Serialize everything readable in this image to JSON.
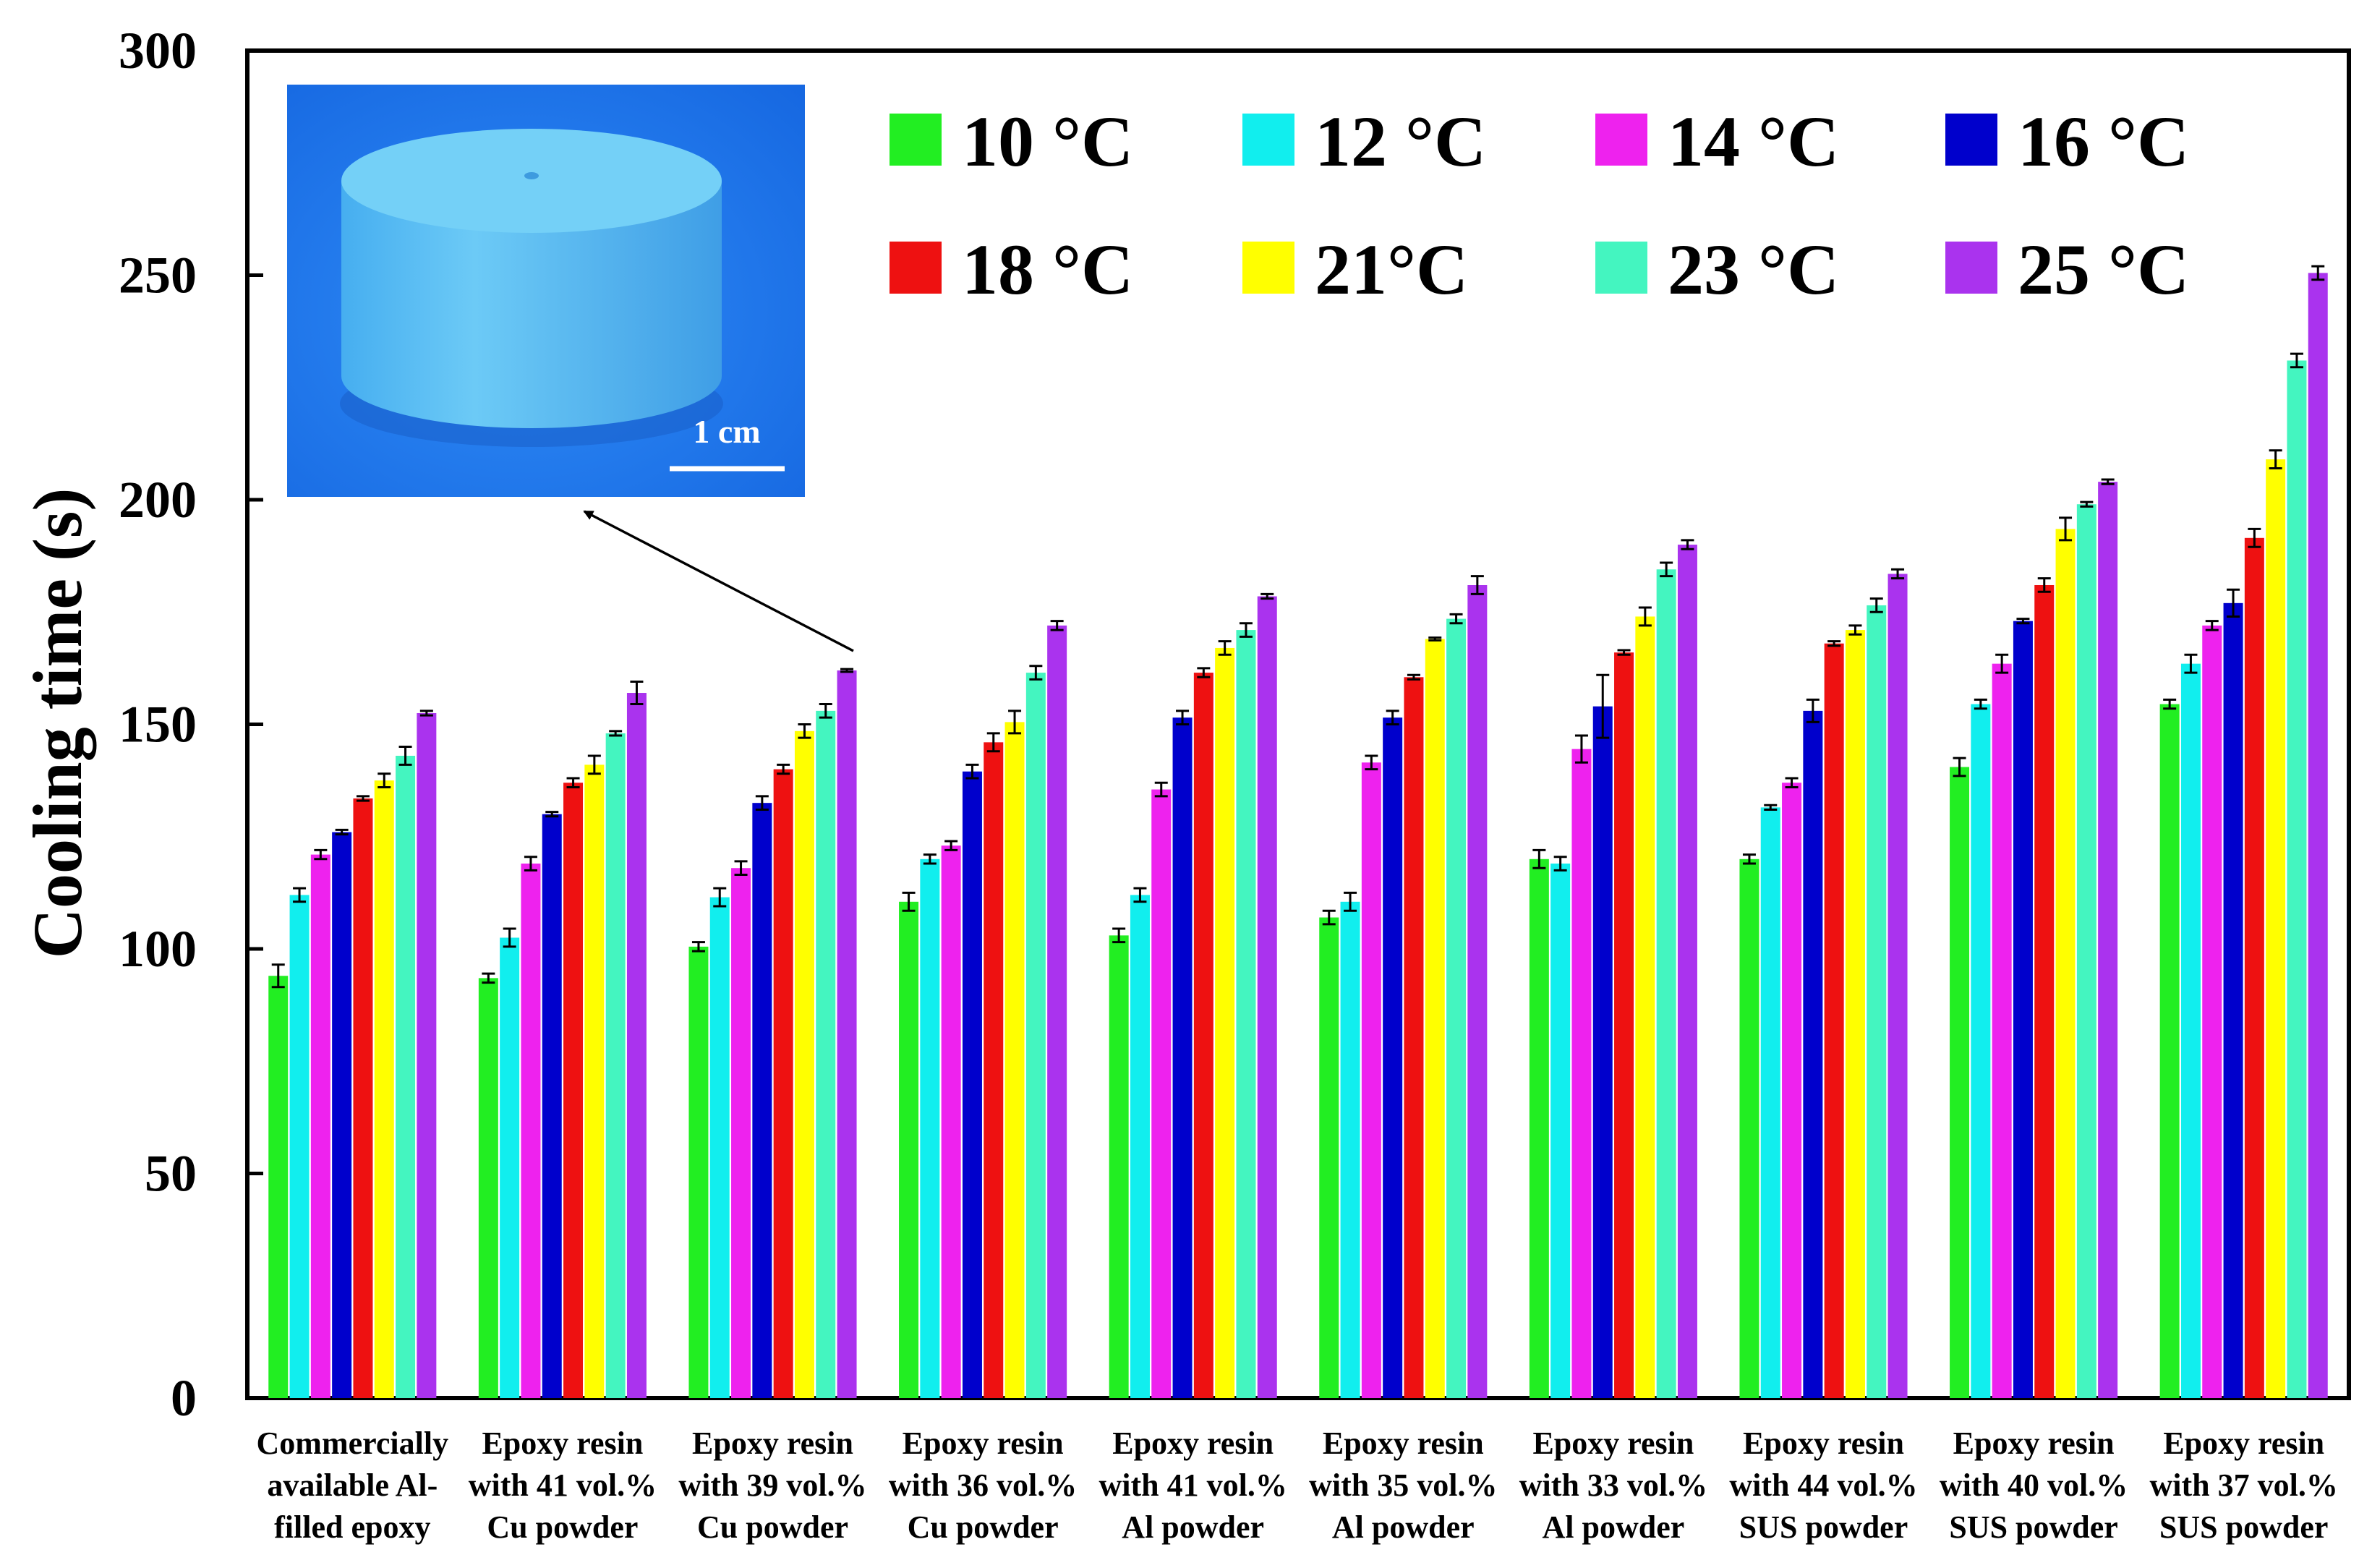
{
  "chart_data": {
    "type": "bar",
    "ylabel": "Cooling time (s)",
    "xlabel": "",
    "ylim": [
      0,
      300
    ],
    "yticks": [
      0,
      50,
      100,
      150,
      200,
      250,
      300
    ],
    "grid": false,
    "legend_position": "top-right",
    "categories": [
      [
        "Commercially",
        "available Al-",
        "filled epoxy"
      ],
      [
        "Epoxy resin",
        "with 41 vol.%",
        "Cu powder"
      ],
      [
        "Epoxy resin",
        "with 39 vol.%",
        "Cu powder"
      ],
      [
        "Epoxy resin",
        "with 36 vol.%",
        "Cu powder"
      ],
      [
        "Epoxy resin",
        "with 41 vol.%",
        "Al powder"
      ],
      [
        "Epoxy resin",
        "with 35 vol.%",
        "Al powder"
      ],
      [
        "Epoxy resin",
        "with 33 vol.%",
        "Al powder"
      ],
      [
        "Epoxy resin",
        "with 44 vol.%",
        "SUS powder"
      ],
      [
        "Epoxy resin",
        "with 40 vol.%",
        "SUS powder"
      ],
      [
        "Epoxy resin",
        "with 37 vol.%",
        "SUS powder"
      ]
    ],
    "series": [
      {
        "name": "10 °C",
        "color": "#22ee22",
        "values": [
          94,
          93.5,
          100.5,
          110.5,
          103,
          107,
          120,
          120,
          140.5,
          154.5
        ],
        "errors": [
          2.5,
          1,
          1,
          2,
          1.5,
          1.5,
          2,
          1,
          2,
          1
        ]
      },
      {
        "name": "12 °C",
        "color": "#11eeee",
        "values": [
          112,
          102.5,
          111.5,
          120,
          112,
          110.5,
          119,
          131.5,
          154.5,
          163.5
        ],
        "errors": [
          1.5,
          2,
          2,
          1,
          1.5,
          2,
          1.5,
          0.5,
          1,
          2
        ]
      },
      {
        "name": "14 °C",
        "color": "#ee22ee",
        "values": [
          121,
          119,
          118,
          123,
          135.5,
          141.5,
          144.5,
          137,
          163.5,
          172
        ],
        "errors": [
          1,
          1.5,
          1.5,
          1,
          1.5,
          1.5,
          3,
          1,
          2,
          1
        ]
      },
      {
        "name": "16 °C",
        "color": "#0000cc",
        "values": [
          126,
          130,
          132.5,
          139.5,
          151.5,
          151.5,
          154,
          153,
          173,
          177
        ],
        "errors": [
          0.5,
          0.5,
          1.5,
          1.5,
          1.5,
          1.5,
          7,
          2.5,
          0.5,
          3
        ]
      },
      {
        "name": "18 °C",
        "color": "#ee1111",
        "values": [
          133.5,
          137,
          140,
          146,
          161.5,
          160.5,
          166,
          168,
          181,
          191.5
        ],
        "errors": [
          0.5,
          1,
          1,
          2,
          1,
          0.5,
          0.5,
          0.5,
          1.5,
          2
        ]
      },
      {
        "name": "21°C",
        "color": "#ffff00",
        "values": [
          137.5,
          141,
          148.5,
          150.5,
          167,
          169,
          174,
          171,
          193.5,
          209
        ],
        "errors": [
          1.5,
          2,
          1.5,
          2.5,
          1.5,
          0.3,
          2,
          1,
          2.5,
          2
        ]
      },
      {
        "name": "23 °C",
        "color": "#44f5c0",
        "values": [
          143,
          148,
          153,
          161.5,
          171,
          173.5,
          184.5,
          176.5,
          199,
          231
        ],
        "errors": [
          2,
          0.5,
          1.5,
          1.5,
          1.5,
          1,
          1.5,
          1.5,
          0.5,
          1.5
        ]
      },
      {
        "name": "25 °C",
        "color": "#aa33ee",
        "values": [
          152.5,
          157,
          162,
          172,
          178.5,
          181,
          190,
          183.5,
          204,
          250.5
        ],
        "errors": [
          0.5,
          2.5,
          0.3,
          1,
          0.5,
          2,
          1,
          1,
          0.5,
          1.5
        ]
      }
    ]
  },
  "inset": {
    "scale_label": "1 cm",
    "points_to_category": 2,
    "colors": {
      "background": "#1f7af0",
      "object": "#5bbff2"
    }
  }
}
